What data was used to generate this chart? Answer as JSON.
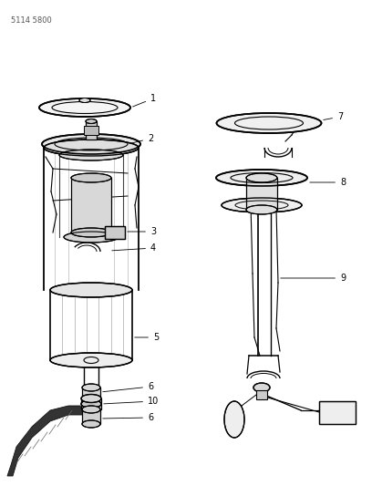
{
  "title": "5114 5800",
  "bg_color": "#ffffff",
  "line_color": "#000000",
  "fig_width": 4.08,
  "fig_height": 5.33,
  "dpi": 100,
  "grey_fill": "#e8e8e8",
  "dark_grey": "#999999",
  "mid_grey": "#cccccc"
}
